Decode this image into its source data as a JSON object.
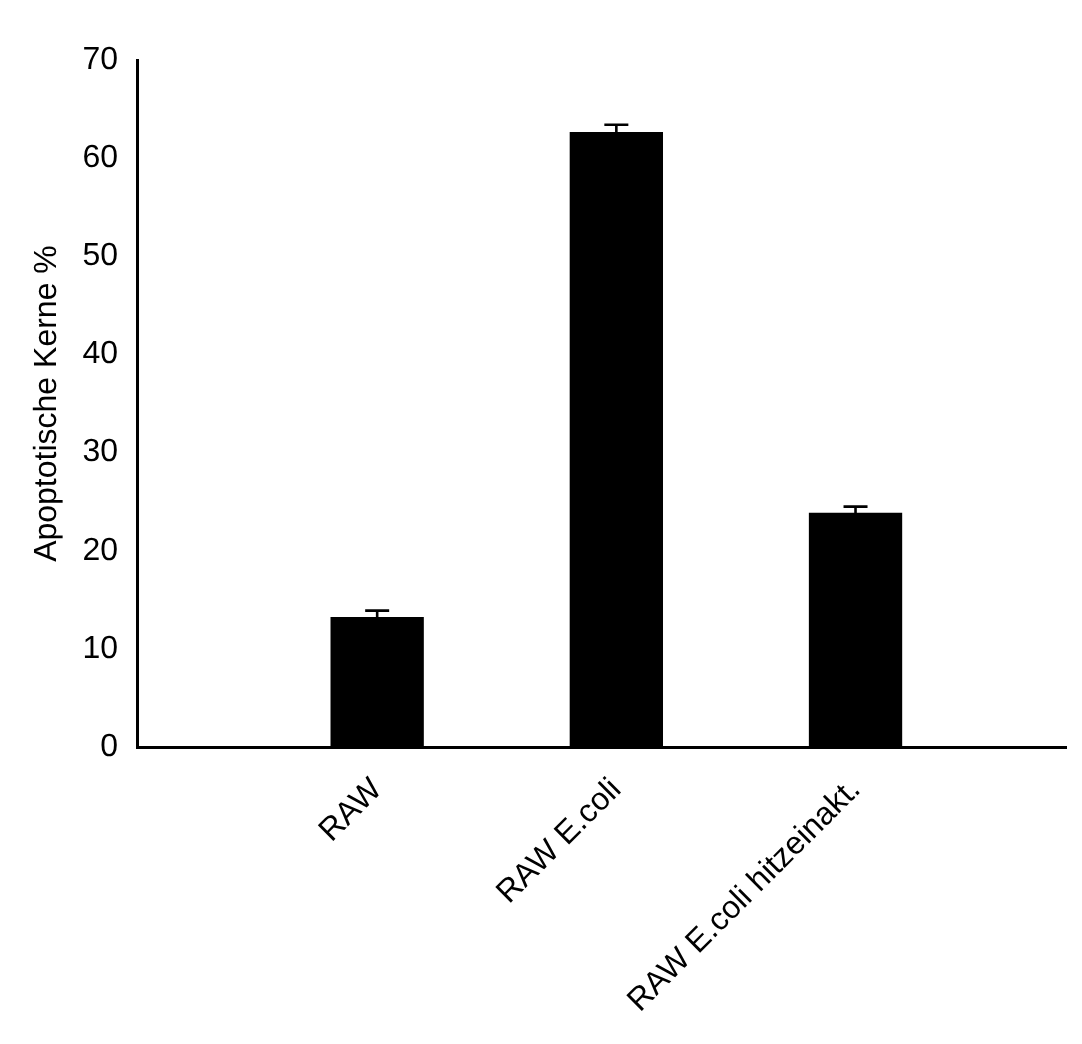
{
  "chart_data": {
    "type": "bar",
    "categories": [
      "RAW",
      "RAW E.coli",
      "RAW E.coli hitzeinakt."
    ],
    "values": [
      13.2,
      62.6,
      23.8
    ],
    "errors": [
      0.7,
      0.8,
      0.7
    ],
    "color": "#000000",
    "ylabel": "Apoptotische Kerne %",
    "ylim": [
      0,
      70
    ],
    "yticks": [
      0,
      10,
      20,
      30,
      40,
      50,
      60,
      70
    ],
    "grid": false,
    "legend": false
  }
}
